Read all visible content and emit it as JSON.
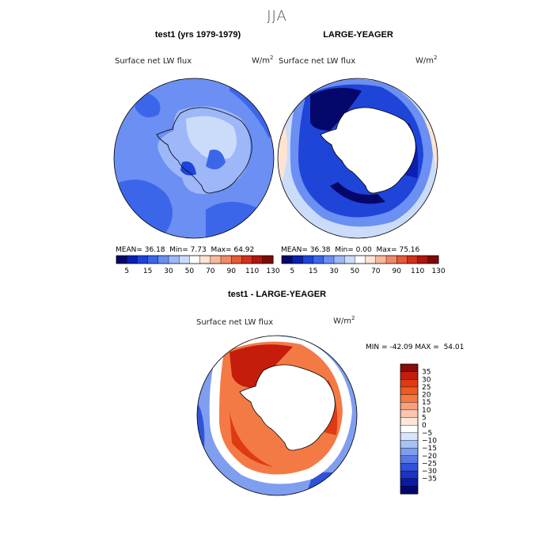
{
  "season": "JJA",
  "panels": [
    {
      "title": "test1 (yrs 1979-1979)",
      "variable": "Surface net LW flux",
      "units": "W/m",
      "units_exp": "2",
      "stats": {
        "mean": "36.18",
        "min": "7.73",
        "max": "64.92"
      },
      "field": "model"
    },
    {
      "title": "LARGE-YEAGER",
      "variable": "Surface net LW flux",
      "units": "W/m",
      "units_exp": "2",
      "stats": {
        "mean": "36.38",
        "min": "0.00",
        "max": "75.16"
      },
      "field": "obs"
    },
    {
      "title": "test1 - LARGE-YEAGER",
      "variable": "Surface net LW flux",
      "units": "W/m",
      "units_exp": "2",
      "stats": {
        "min": "-42.09",
        "max": "54.01"
      },
      "field": "diff"
    }
  ],
  "stat_labels": {
    "mean": "MEAN=",
    "min": "Min=",
    "max": "Max=",
    "diff_min": "MIN =",
    "diff_max": "MAX ="
  },
  "chart_data": {
    "type": "heatmap",
    "projection": "south polar stereographic",
    "colorbar_abs": {
      "tick_labels": [
        "5",
        "15",
        "30",
        "50",
        "70",
        "90",
        "110",
        "130"
      ],
      "colors": [
        "#05076a",
        "#0c1fb0",
        "#1f44d8",
        "#3c66ea",
        "#6b8ff2",
        "#9db7f8",
        "#cbdcfb",
        "#ffffff",
        "#fde3d4",
        "#f7b89c",
        "#f08a66",
        "#e55a37",
        "#d2301a",
        "#b01510",
        "#7d0a09"
      ]
    },
    "colorbar_diff": {
      "tick_labels": [
        "35",
        "30",
        "25",
        "20",
        "15",
        "10",
        "5",
        "0",
        "−5",
        "−10",
        "−15",
        "−20",
        "−25",
        "−30",
        "−35"
      ],
      "colors": [
        "#8b0b06",
        "#c51c0c",
        "#df3a14",
        "#ee5a22",
        "#f47a45",
        "#f8a07c",
        "#fbc6ad",
        "#fde7dc",
        "#ffffff",
        "#d6e5fb",
        "#a7c2f5",
        "#7f9ef0",
        "#5778e5",
        "#2f52d8",
        "#1a33c2",
        "#0b1aa0",
        "#040670"
      ]
    },
    "color_scale": {
      "dark_blue": "#05076a",
      "mid_blue": "#3c66ea",
      "light_blue": "#9db7f8",
      "white": "#ffffff",
      "light_red": "#fbc6ad",
      "red": "#e55a37",
      "dark_red": "#8b0b06"
    }
  }
}
